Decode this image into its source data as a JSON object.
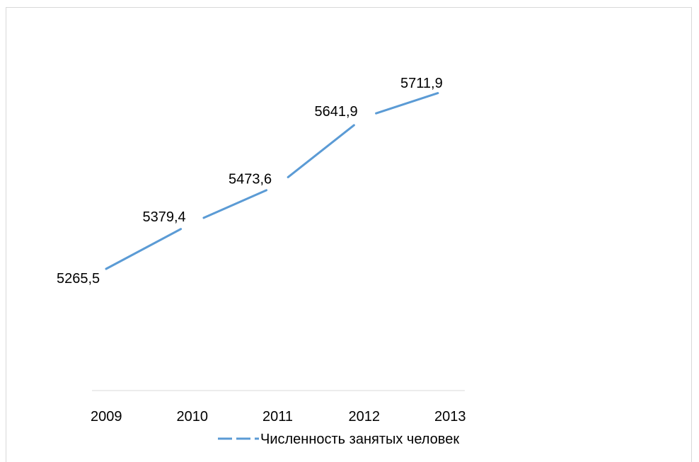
{
  "chart_data": {
    "type": "line",
    "categories": [
      "2009",
      "2010",
      "2011",
      "2012",
      "2013"
    ],
    "series": [
      {
        "name": "Численность занятых человек",
        "values": [
          5265.5,
          5379.4,
          5473.6,
          5641.9,
          5711.9
        ],
        "labels": [
          "5265,5",
          "5379,4",
          "5473,6",
          "5641,9",
          "5711,9"
        ],
        "color": "#5b9bd5"
      }
    ],
    "grid": false,
    "legend": "bottom"
  }
}
